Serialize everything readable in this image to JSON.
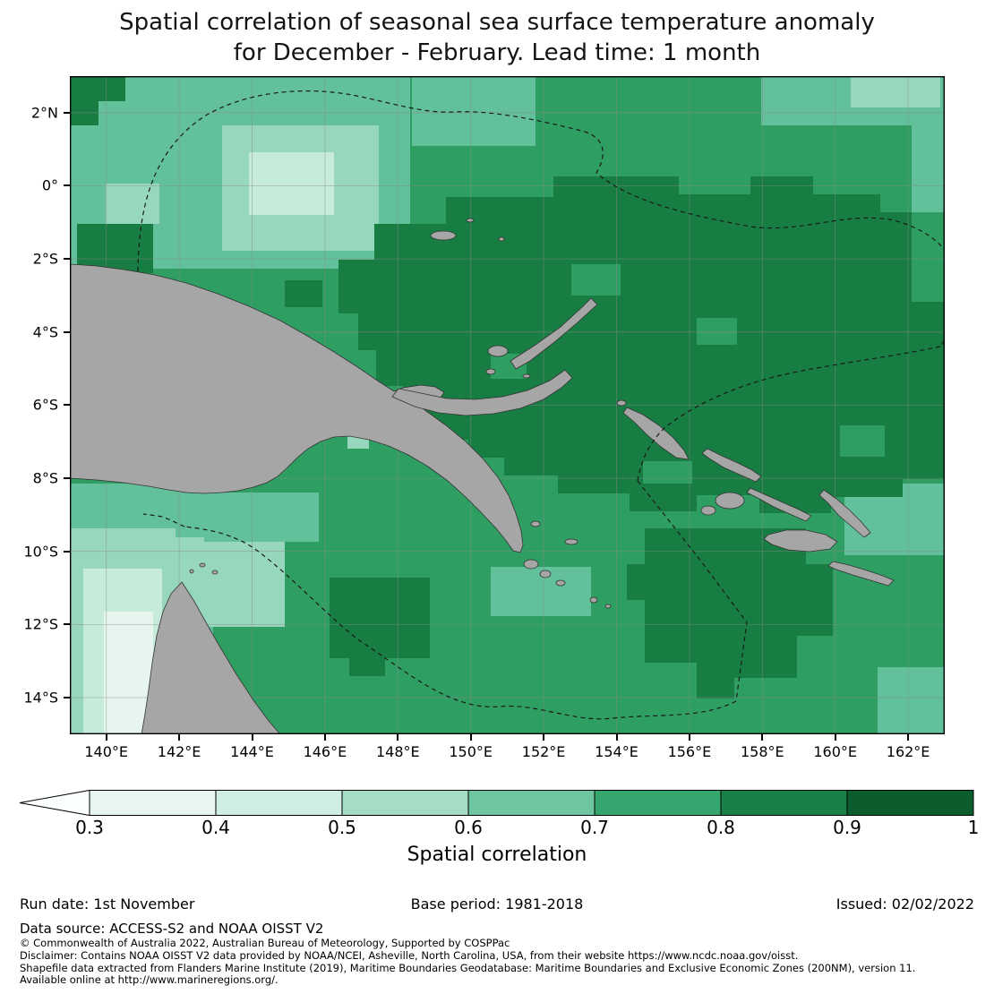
{
  "title": {
    "line1": "Spatial correlation of seasonal sea surface temperature anomaly",
    "line2": "for December - February. Lead time: 1 month"
  },
  "map": {
    "y_ticks": [
      "2°N",
      "0°",
      "2°S",
      "4°S",
      "6°S",
      "8°S",
      "10°S",
      "12°S",
      "14°S"
    ],
    "x_ticks": [
      "140°E",
      "142°E",
      "144°E",
      "146°E",
      "148°E",
      "150°E",
      "152°E",
      "154°E",
      "156°E",
      "158°E",
      "160°E",
      "162°E"
    ]
  },
  "colorbar": {
    "label": "Spatial correlation",
    "ticks": [
      "0.3",
      "0.4",
      "0.5",
      "0.6",
      "0.7",
      "0.8",
      "0.9",
      "1"
    ],
    "colors": [
      "#fbfffd",
      "#e8f6f1",
      "#d0ede2",
      "#a5dcc6",
      "#6ec6a0",
      "#35a66d",
      "#1a8047",
      "#0b5d2d"
    ]
  },
  "footer": {
    "run_date": "Run date: 1st November",
    "base_period": "Base period: 1981-2018",
    "issued": "Issued: 02/02/2022",
    "data_source": "Data source: ACCESS-S2 and NOAA OISST V2",
    "copyright": "© Commonwealth of Australia 2022, Australian Bureau of Meteorology, Supported by COSPPac",
    "disclaimer": "Disclaimer: Contains NOAA OISST V2 data provided by NOAA/NCEI, Asheville, North Carolina, USA, from their website https://www.ncdc.noaa.gov/oisst.",
    "shapefile": "Shapefile data extracted from Flanders Marine Institute (2019), Maritime Boundaries Geodatabase: Maritime Boundaries and Exclusive Economic Zones (200NM), version 11.",
    "available": "Available online at http://www.marineregions.org/."
  },
  "chart_data": {
    "type": "heatmap",
    "title": "Spatial correlation of seasonal sea surface temperature anomaly for December - February. Lead time: 1 month",
    "x_tick_labels": [
      "140°E",
      "142°E",
      "144°E",
      "146°E",
      "148°E",
      "150°E",
      "152°E",
      "154°E",
      "156°E",
      "158°E",
      "160°E",
      "162°E"
    ],
    "y_tick_labels": [
      "2°N",
      "0°",
      "2°S",
      "4°S",
      "6°S",
      "8°S",
      "10°S",
      "12°S",
      "14°S"
    ],
    "lon_range_deg_east": [
      139,
      163
    ],
    "lat_range_deg": [
      -15,
      3
    ],
    "colorbar_label": "Spatial correlation",
    "colorbar_levels": [
      0.3,
      0.4,
      0.5,
      0.6,
      0.7,
      0.8,
      0.9,
      1.0
    ],
    "colorbar_extend": "min",
    "legend_position": "bottom",
    "grid": true,
    "value_summary": "Most ocean area 0.7-0.9; darkest (0.8-0.9) east/northeast of Papua New Guinea and Solomon Sea; lighter values (0.3-0.6) near northeast Australian coast and northwest corner; land masked grey; dashed maritime EEZ boundaries overlaid"
  }
}
